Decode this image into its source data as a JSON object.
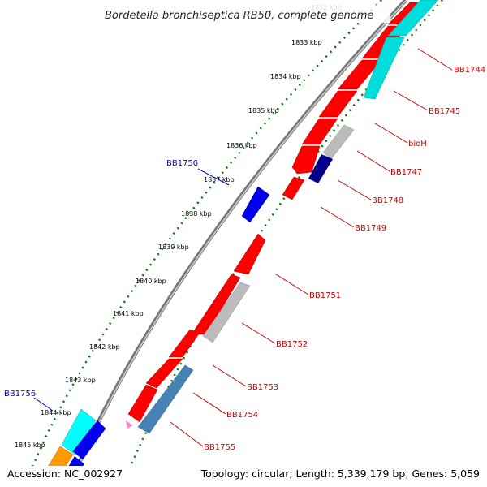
{
  "title": "Bordetella bronchiseptica RB50, complete genome",
  "footer": {
    "accession_label": "Accession:",
    "accession": "NC_002927",
    "topology_label": "Topology:",
    "topology": "circular",
    "length_label": "Length:",
    "length": "5,339,179 bp",
    "genes_label": "Genes:",
    "genes": "5,059"
  },
  "ticks": [
    "1832 kbp",
    "1833 kbp",
    "1834 kbp",
    "1835 kbp",
    "1836 kbp",
    "1837 kbp",
    "1838 kbp",
    "1839 kbp",
    "1840 kbp",
    "1841 kbp",
    "1842 kbp",
    "1843 kbp",
    "1844 kbp",
    "1845 kbp"
  ],
  "genes_outer": [
    {
      "label": "BB1750",
      "color": "#0000ee"
    },
    {
      "label": "BB1756",
      "color": "#0000ee"
    }
  ],
  "genes_inner": [
    {
      "label": "BB1744",
      "color": "#cc0000"
    },
    {
      "label": "BB1745",
      "color": "#cc0000"
    },
    {
      "label": "bioH",
      "color": "#cc0000"
    },
    {
      "label": "BB1747",
      "color": "#cc0000"
    },
    {
      "label": "BB1748",
      "color": "#cc0000"
    },
    {
      "label": "BB1749",
      "color": "#cc0000"
    },
    {
      "label": "BB1751",
      "color": "#cc0000"
    },
    {
      "label": "BB1752",
      "color": "#cc0000"
    },
    {
      "label": "BB1753",
      "color": "#cc0000"
    },
    {
      "label": "BB1754",
      "color": "#cc0000"
    },
    {
      "label": "BB1755",
      "color": "#cc0000"
    }
  ],
  "colors": {
    "cds_forward_red": "#ff0000",
    "cds_reverse_blue": "#0000ee",
    "rna_cyan": "#00dddd",
    "feature_grey": "#bbbbbb",
    "feature_steelblue": "#4682b4",
    "feature_navy": "#000088",
    "feature_orange": "#ff9900",
    "backbone": "#888888",
    "tick_green": "#007700"
  }
}
